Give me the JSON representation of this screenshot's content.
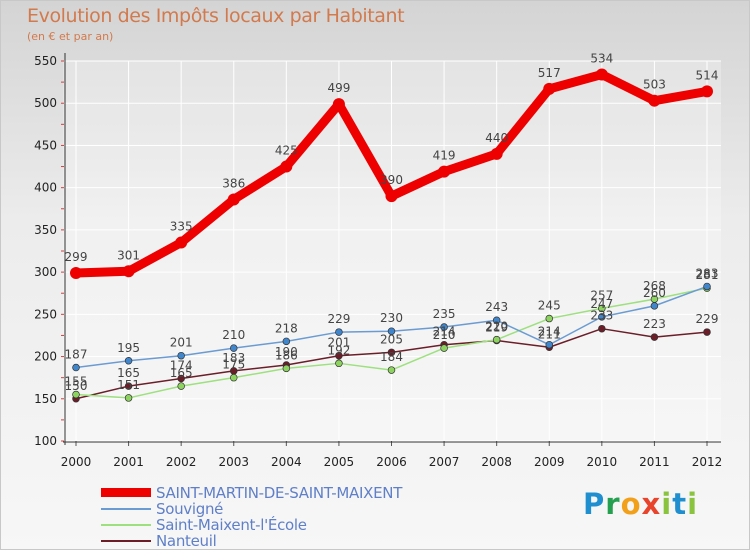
{
  "chart_data": {
    "type": "line",
    "title": "Evolution des Impôts locaux par Habitant",
    "subtitle": "(en € et par an)",
    "xlabel": "",
    "ylabel": "",
    "ylim": [
      100,
      550
    ],
    "yticks": [
      100,
      150,
      200,
      250,
      300,
      350,
      400,
      450,
      500,
      550
    ],
    "x": [
      "2000",
      "2001",
      "2002",
      "2003",
      "2004",
      "2005",
      "2006",
      "2007",
      "2008",
      "2009",
      "2010",
      "2011",
      "2012"
    ],
    "grid": true,
    "series": [
      {
        "name": "SAINT-MARTIN-DE-SAINT-MAIXENT",
        "color": "#ee0000",
        "marker_color": "#ee0000",
        "values": [
          299,
          301,
          335,
          386,
          425,
          499,
          390,
          419,
          440,
          517,
          534,
          503,
          514
        ]
      },
      {
        "name": "Souvigné",
        "color": "#6a9bd3",
        "marker_color": "#3f86cc",
        "values": [
          187,
          195,
          201,
          210,
          218,
          229,
          230,
          235,
          243,
          214,
          247,
          260,
          283
        ]
      },
      {
        "name": "Saint-Maixent-l'École",
        "color": "#9de07e",
        "marker_color": "#8dd35f",
        "values": [
          155,
          151,
          165,
          175,
          186,
          192,
          184,
          210,
          220,
          245,
          257,
          268,
          281
        ]
      },
      {
        "name": "Nanteuil",
        "color": "#6b1e28",
        "marker_color": "#6b1e28",
        "values": [
          150,
          165,
          174,
          183,
          190,
          201,
          205,
          214,
          219,
          211,
          233,
          223,
          229
        ]
      }
    ]
  },
  "brand": {
    "p": "P",
    "r": "r",
    "o": "o",
    "x": "x",
    "i": "i",
    "t": "t",
    "i2": "i"
  }
}
